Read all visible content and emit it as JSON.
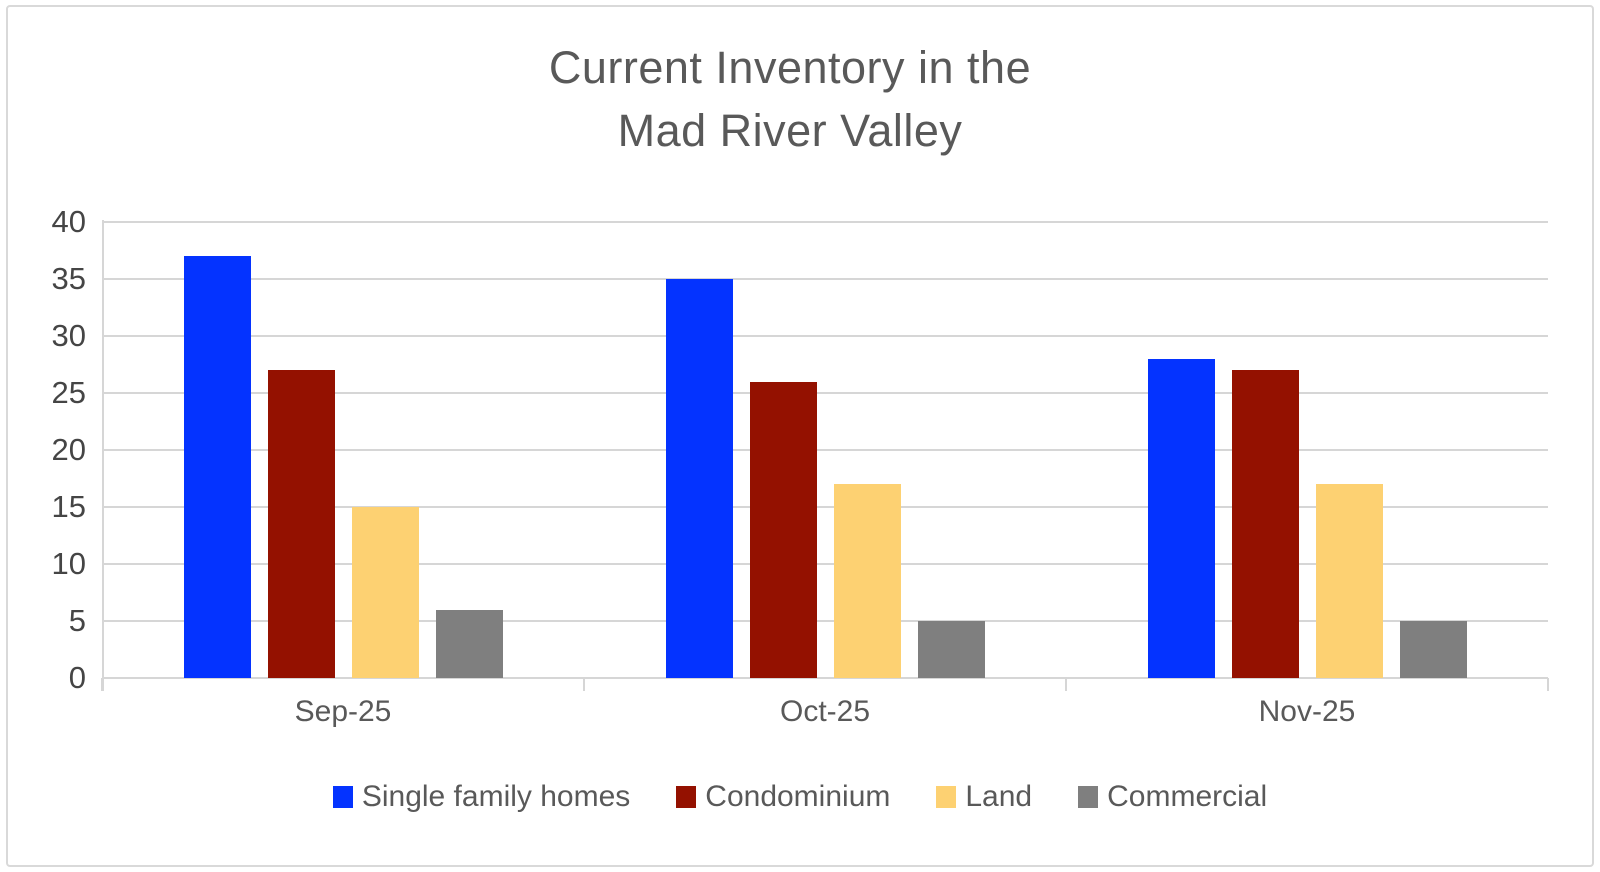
{
  "chart_data": {
    "type": "bar",
    "title": "Current Inventory in the Mad River Valley",
    "title_line1": "Current Inventory in the",
    "title_line2": "Mad River Valley",
    "categories": [
      "Sep-25",
      "Oct-25",
      "Nov-25"
    ],
    "series": [
      {
        "name": "Single family homes",
        "color": "#0433FF",
        "values": [
          37,
          35,
          28
        ]
      },
      {
        "name": "Condominium",
        "color": "#941100",
        "values": [
          27,
          26,
          27
        ]
      },
      {
        "name": "Land",
        "color": "#FDD172",
        "values": [
          15,
          17,
          17
        ]
      },
      {
        "name": "Commercial",
        "color": "#7F7F7F",
        "values": [
          6,
          5,
          5
        ]
      }
    ],
    "xlabel": "",
    "ylabel": "",
    "ylim": [
      0,
      40
    ],
    "y_axis": {
      "min": 0,
      "max": 40,
      "step": 5,
      "tick_labels": [
        "0",
        "5",
        "10",
        "15",
        "20",
        "25",
        "30",
        "35",
        "40"
      ]
    },
    "grid": true,
    "legend_position": "bottom"
  },
  "colors": {
    "background": "#FFFFFF",
    "frame_border": "#D9D9D9",
    "gridline": "#D6D6D6",
    "title_text": "#595959",
    "y_tick_text": "#454545",
    "x_tick_text": "#595959",
    "legend_text": "#595959"
  }
}
